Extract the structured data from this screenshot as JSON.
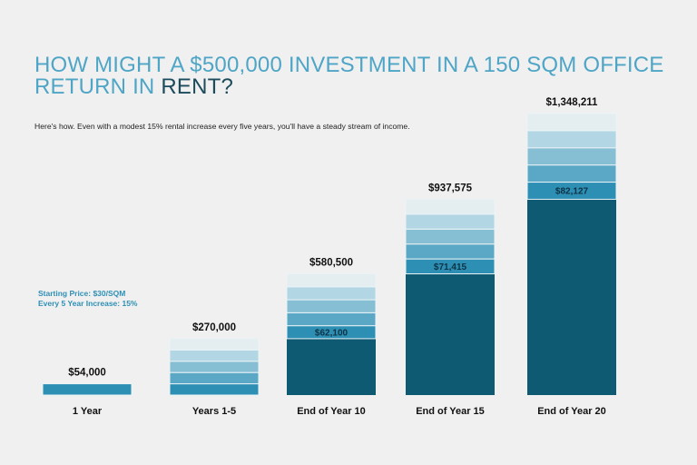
{
  "title": {
    "part1": "HOW MIGHT A $500,000 INVESTMENT IN A 150 SQM OFFICE RETURN IN",
    "part2": "RENT?"
  },
  "subtitle": "Here's how. Even with a modest 15% rental increase every five years, you'll have a steady stream of income.",
  "notes": [
    "Starting Price: $30/SQM",
    "Every 5 Year Increase: 15%"
  ],
  "colors": {
    "base": "#0f5a73",
    "segments": [
      "#2e8fb5",
      "#5ba8c6",
      "#86bed4",
      "#b3d6e4",
      "#e4eef1"
    ],
    "title": "#4ea5c6",
    "title_accent": "#1b4b5c"
  },
  "chart_data": {
    "type": "bar",
    "stacked": true,
    "categories": [
      "1 Year",
      "Years 1-5",
      "End of Year 10",
      "End of Year 15",
      "End of Year 20"
    ],
    "totals": [
      "$54,000",
      "$270,000",
      "$580,500",
      "$937,575",
      "$1,348,211"
    ],
    "series": [
      {
        "values": [
          0,
          0,
          270000,
          580500,
          937575
        ]
      },
      {
        "values": [
          54000,
          54000,
          62100,
          71415,
          82127
        ]
      },
      {
        "values": [
          0,
          54000,
          62100,
          71415,
          82127
        ]
      },
      {
        "values": [
          0,
          54000,
          62100,
          71415,
          82127
        ]
      },
      {
        "values": [
          0,
          54000,
          62100,
          71415,
          82127
        ]
      },
      {
        "values": [
          0,
          54000,
          62100,
          71415,
          82127
        ]
      }
    ],
    "segment_labels": [
      "",
      "",
      "$62,100",
      "$71,415",
      "$82,127"
    ],
    "ylim": [
      0,
      1400000
    ],
    "grid": false,
    "legend": "none"
  }
}
